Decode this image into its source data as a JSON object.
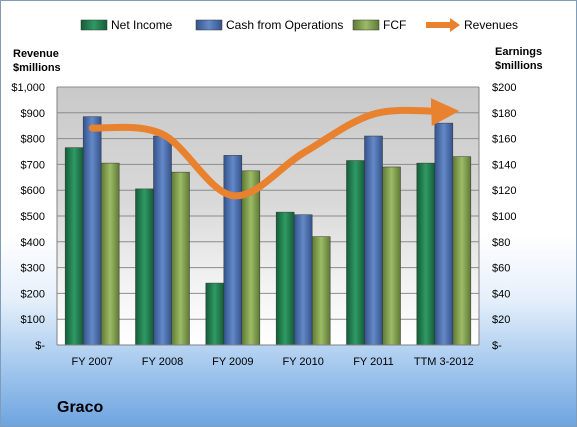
{
  "company_name": "Graco",
  "chart_data": {
    "type": "bar",
    "categories": [
      "FY 2007",
      "FY 2008",
      "FY 2009",
      "FY 2010",
      "FY 2011",
      "TTM 3-2012"
    ],
    "series": [
      {
        "name": "Net Income",
        "axis": "right",
        "color": "#1f7a4d",
        "values": [
          153,
          121,
          48,
          103,
          143,
          141
        ]
      },
      {
        "name": "Cash from Operations",
        "axis": "right",
        "color": "#4a6fb0",
        "values": [
          177,
          162,
          147,
          101,
          162,
          172
        ]
      },
      {
        "name": "FCF",
        "axis": "right",
        "color": "#7f9c4e",
        "values": [
          141,
          134,
          135,
          84,
          138,
          146
        ]
      },
      {
        "name": "Revenues",
        "axis": "left",
        "type": "line",
        "color": "#e8822f",
        "values": [
          841,
          817,
          579,
          744,
          895,
          905
        ]
      }
    ],
    "left_axis": {
      "label_lines": [
        "Revenue",
        "$millions"
      ],
      "range": [
        0,
        1000
      ],
      "ticks": [
        "$-",
        "$100",
        "$200",
        "$300",
        "$400",
        "$500",
        "$600",
        "$700",
        "$800",
        "$900",
        "$1,000"
      ]
    },
    "right_axis": {
      "label_lines": [
        "Earnings",
        "$millions"
      ],
      "range": [
        0,
        200
      ],
      "ticks": [
        "$-",
        "$20",
        "$40",
        "$60",
        "$80",
        "$100",
        "$120",
        "$140",
        "$160",
        "$180",
        "$200"
      ]
    },
    "legend_position": "top",
    "grid": true
  }
}
